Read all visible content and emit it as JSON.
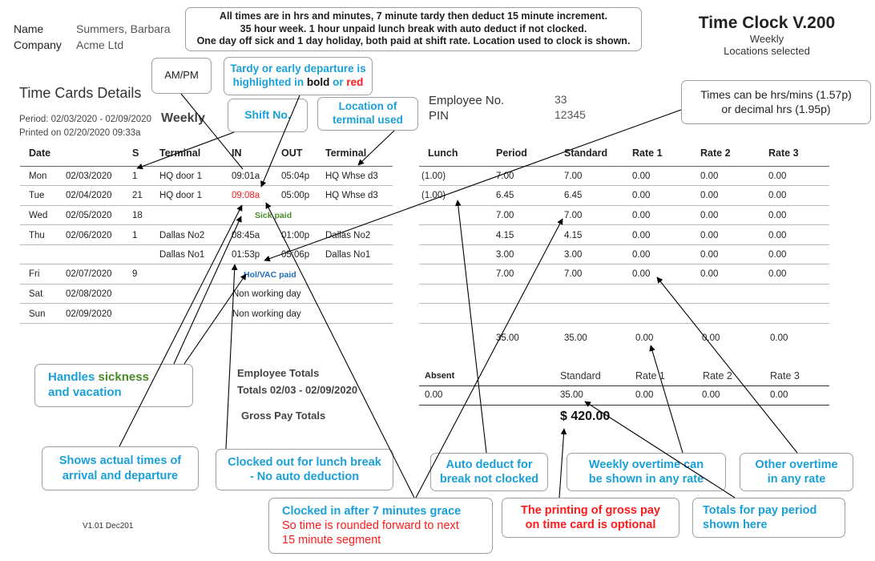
{
  "identity": {
    "name_label": "Name",
    "name_value": "Summers, Barbara",
    "company_label": "Company",
    "company_value": "Acme Ltd"
  },
  "top_note": [
    "All times are in hrs and minutes, 7 minute tardy then deduct 15 minute increment.",
    "35 hour week. 1 hour unpaid lunch break with auto deduct if not clocked.",
    "One day off sick and 1 day holiday, both paid at shift rate. Location used to clock is shown."
  ],
  "brand": {
    "title": "Time Clock V.200",
    "sub1": "Weekly",
    "sub2": "Locations selected"
  },
  "section_title": "Time Cards Details",
  "period": "Period: 02/03/2020 - 02/09/2020",
  "printed": "Printed on 02/20/2020 09:33a",
  "weekly_label": "Weekly",
  "employee": {
    "no_label": "Employee No.",
    "no_value": "33",
    "pin_label": "PIN",
    "pin_value": "12345"
  },
  "columns": {
    "date": "Date",
    "shift": "S",
    "terminal_in": "Terminal",
    "in": "IN",
    "out": "OUT",
    "terminal_out": "Terminal",
    "lunch": "Lunch",
    "period": "Period",
    "standard": "Standard",
    "rate1": "Rate 1",
    "rate2": "Rate 2",
    "rate3": "Rate 3"
  },
  "rows": [
    {
      "day": "Mon",
      "date": "02/03/2020",
      "s": "1",
      "tin": "HQ door 1",
      "in": "09:01a",
      "out": "05:04p",
      "tout": "HQ Whse d3",
      "lunch": "(1.00)",
      "period": "7.00",
      "standard": "7.00",
      "r1": "0.00",
      "r2": "0.00",
      "r3": "0.00"
    },
    {
      "day": "Tue",
      "date": "02/04/2020",
      "s": "21",
      "tin": "HQ door 1",
      "in": "09:08a",
      "out": "05:00p",
      "tout": "HQ Whse d3",
      "lunch": "(1.00)",
      "period": "6.45",
      "standard": "6.45",
      "r1": "0.00",
      "r2": "0.00",
      "r3": "0.00"
    },
    {
      "day": "Wed",
      "date": "02/05/2020",
      "s": "18",
      "tin": "",
      "in": "",
      "out": "",
      "tout": "",
      "lunch": "",
      "period": "7.00",
      "standard": "7.00",
      "r1": "0.00",
      "r2": "0.00",
      "r3": "0.00"
    },
    {
      "day": "Thu",
      "date": "02/06/2020",
      "s": "1",
      "tin": "Dallas No2",
      "in": "08:45a",
      "out": "01:00p",
      "tout": "Dallas No2",
      "lunch": "",
      "period": "4.15",
      "standard": "4.15",
      "r1": "0.00",
      "r2": "0.00",
      "r3": "0.00"
    },
    {
      "day": "",
      "date": "",
      "s": "",
      "tin": "Dallas No1",
      "in": "01:53p",
      "out": "05:06p",
      "tout": "Dallas No1",
      "lunch": "",
      "period": "3.00",
      "standard": "3.00",
      "r1": "0.00",
      "r2": "0.00",
      "r3": "0.00"
    },
    {
      "day": "Fri",
      "date": "02/07/2020",
      "s": "9",
      "tin": "",
      "in": "",
      "out": "",
      "tout": "",
      "lunch": "",
      "period": "7.00",
      "standard": "7.00",
      "r1": "0.00",
      "r2": "0.00",
      "r3": "0.00"
    },
    {
      "day": "Sat",
      "date": "02/08/2020",
      "s": "",
      "tin": "",
      "in": "",
      "out": "",
      "tout": "",
      "lunch": "",
      "period": "",
      "standard": "",
      "r1": "",
      "r2": "",
      "r3": ""
    },
    {
      "day": "Sun",
      "date": "02/09/2020",
      "s": "",
      "tin": "",
      "in": "",
      "out": "",
      "tout": "",
      "lunch": "",
      "period": "",
      "standard": "",
      "r1": "",
      "r2": "",
      "r3": ""
    }
  ],
  "specials": {
    "sick": "Sick paid",
    "holiday": "Hol/VAC paid",
    "non_working": "Non working day"
  },
  "week_totals": {
    "period": "35.00",
    "standard": "35.00",
    "r1": "0.00",
    "r2": "0.00",
    "r3": "0.00"
  },
  "employee_totals": {
    "title": "Employee Totals",
    "range": "Totals 02/03 - 02/09/2020",
    "gross_label": "Gross Pay Totals"
  },
  "summary": {
    "headers": {
      "absent": "Absent",
      "standard": "Standard",
      "rate1": "Rate 1",
      "rate2": "Rate 2",
      "rate3": "Rate 3"
    },
    "values": {
      "absent": "0.00",
      "standard": "35.00",
      "rate1": "0.00",
      "rate2": "0.00",
      "rate3": "0.00"
    },
    "gross": "$ 420.00"
  },
  "callouts": {
    "ampm": "AM/PM",
    "tardy_l1": "Tardy or early departure is",
    "tardy_l2a": "highlighted in ",
    "tardy_bold": "bold",
    "tardy_or": " or ",
    "tardy_red": "red",
    "shift": "Shift No.",
    "location_l1": "Location of",
    "location_l2": "terminal used",
    "times_l1": "Times can be hrs/mins (1.57p)",
    "times_l2": "or decimal hrs (1.95p)",
    "handles_l1a": "Handles ",
    "handles_sick": "sickness",
    "handles_l2": "and vacation",
    "actual_l1": "Shows actual times of",
    "actual_l2": "arrival and departure",
    "lunch_l1": "Clocked out for lunch break",
    "lunch_l2": "- No auto deduction",
    "auto_l1": "Auto deduct for",
    "auto_l2": "break not clocked",
    "weekly_ot_l1": "Weekly overtime can",
    "weekly_ot_l2": "be shown in any rate",
    "other_ot_l1": "Other overtime",
    "other_ot_l2": "in any rate",
    "grace_l1": "Clocked in after 7 minutes grace",
    "grace_l2": "So time is rounded forward to next",
    "grace_l3": "15 minute segment",
    "gross_opt_l1": "The printing of gross pay",
    "gross_opt_l2": "on time card is optional",
    "totals_l1": "Totals for pay period",
    "totals_l2": "shown here"
  },
  "version": "V1.01 Dec201",
  "colors": {
    "accent_blue": "#1aa0d8",
    "alert_red": "#ff1a1a",
    "sick_green": "#4a8a2a",
    "holiday_blue": "#1e6fc0"
  }
}
